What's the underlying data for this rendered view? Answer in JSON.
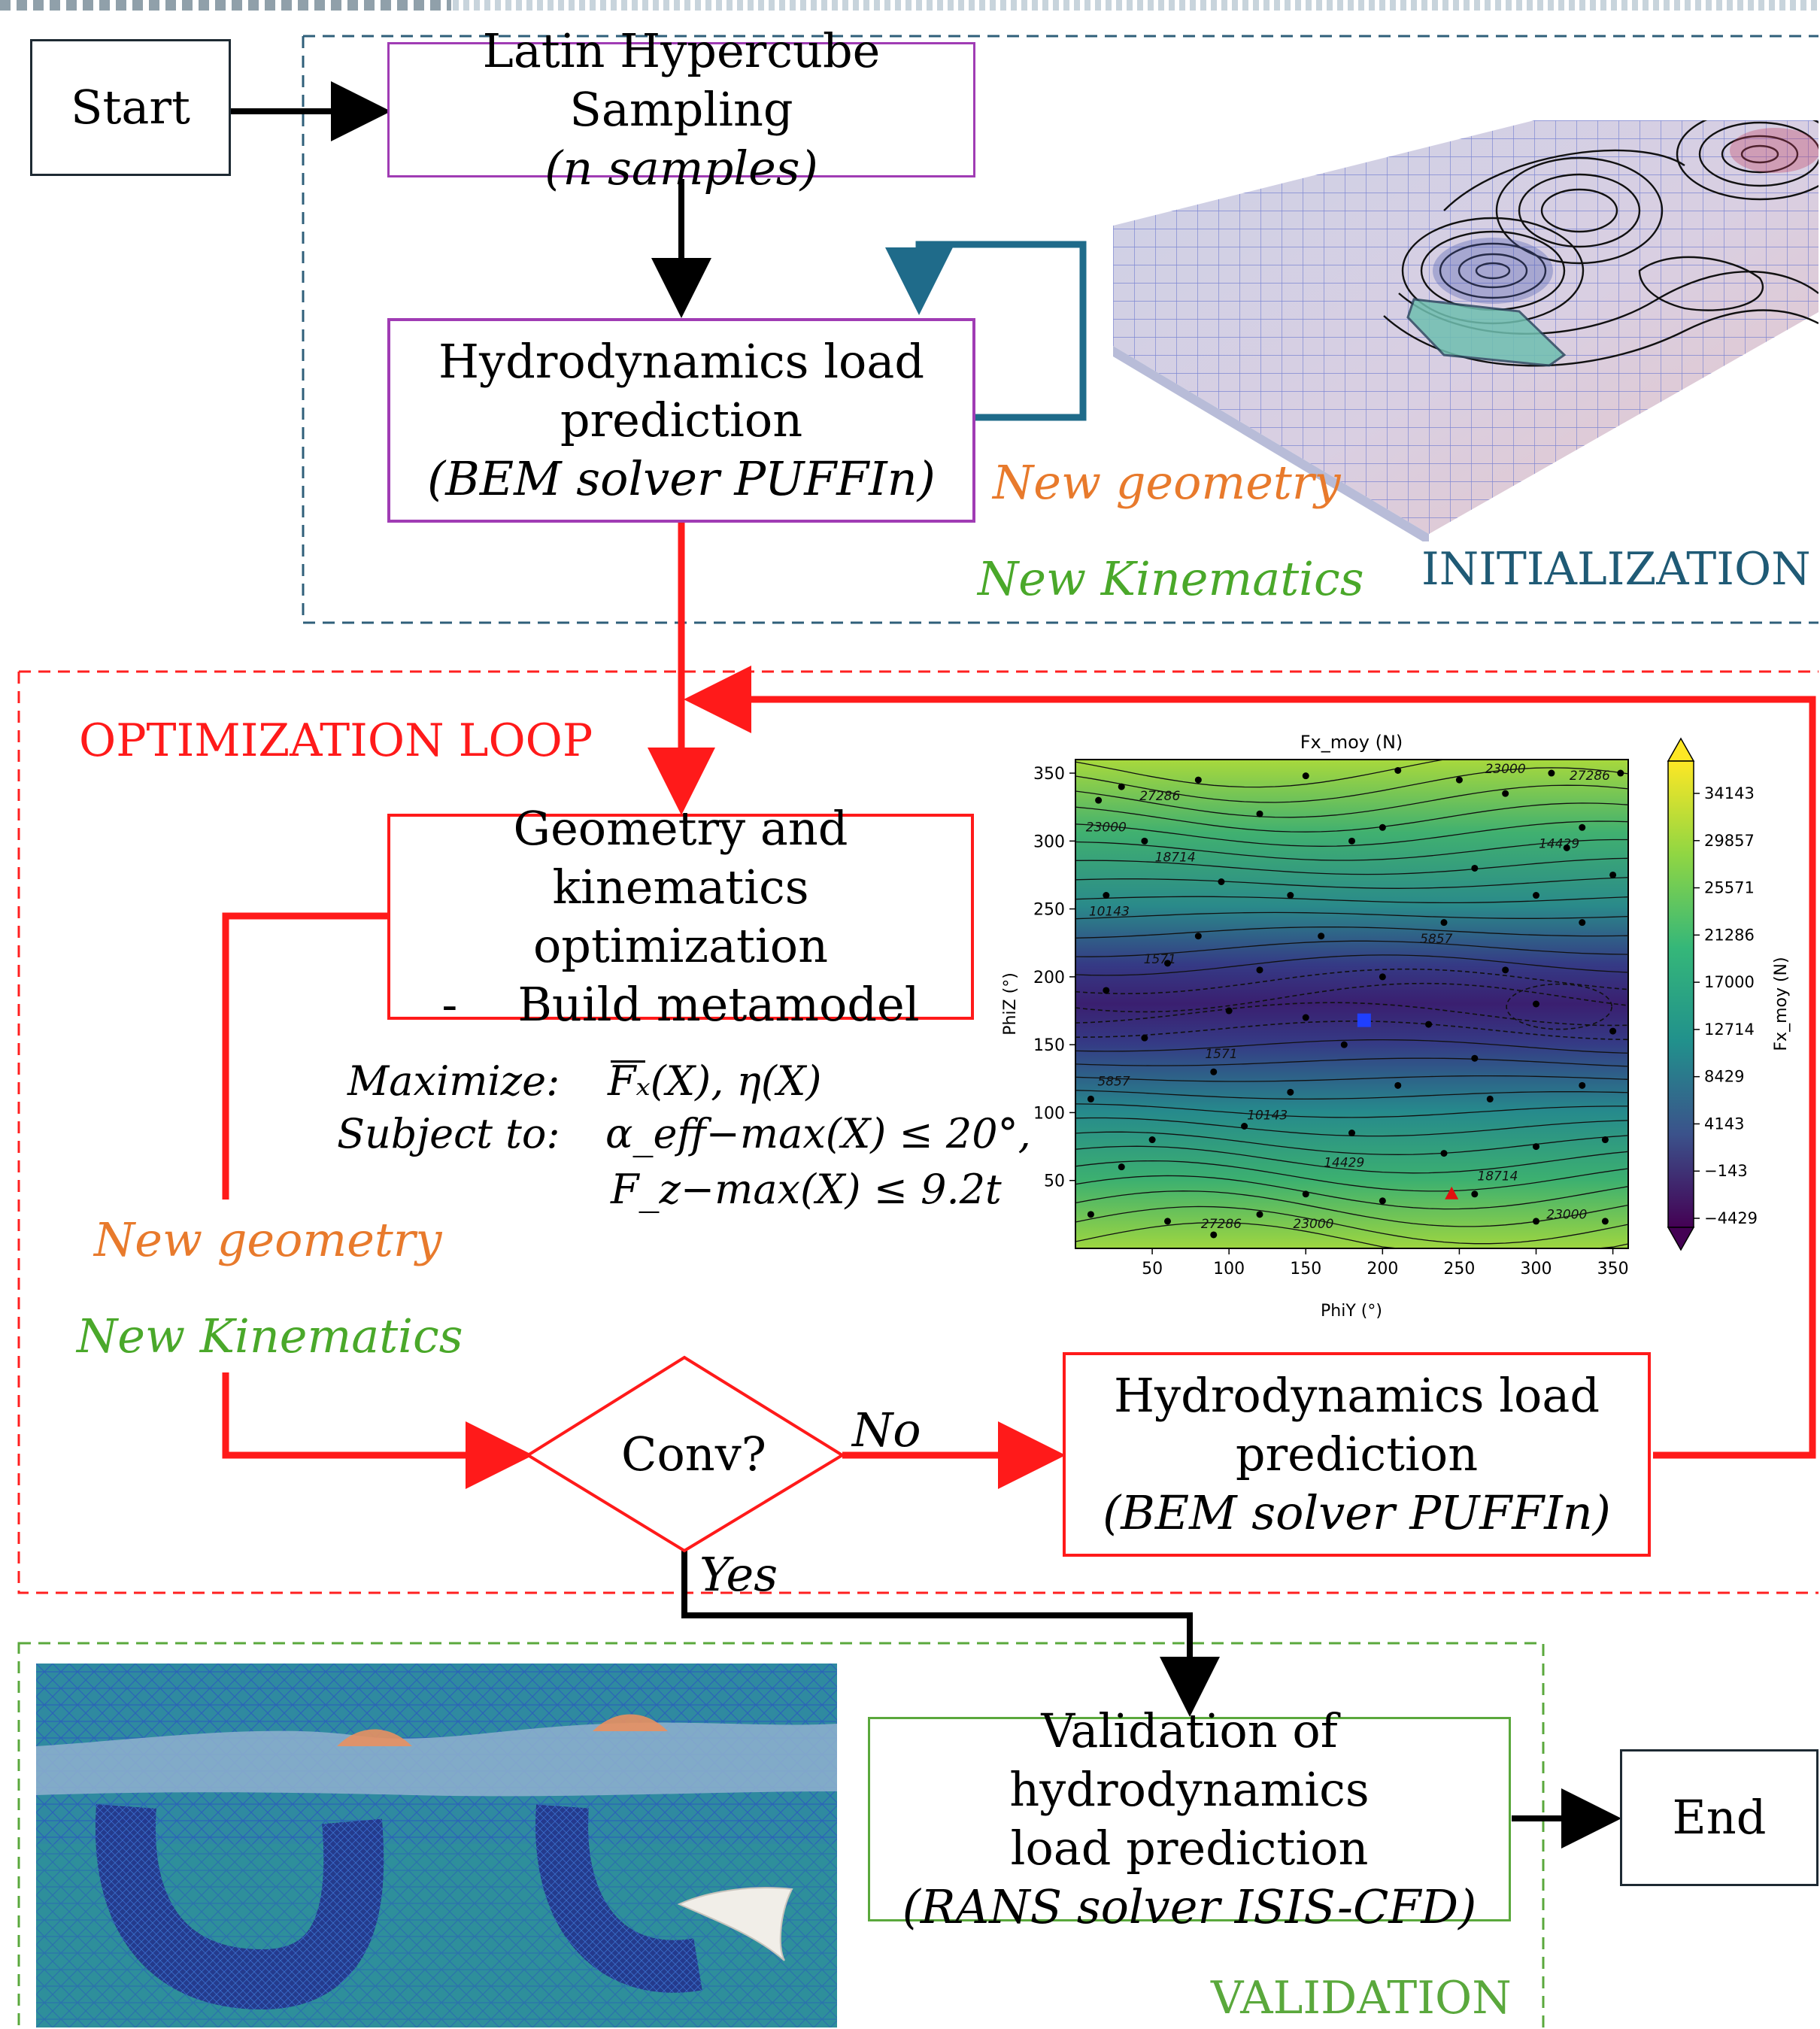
{
  "colors": {
    "init_border": "#2f5f7a",
    "opt_border": "#ff2020",
    "valid_border": "#5aa83c",
    "purple": "#a03cb4",
    "orange": "#e87a2c",
    "green_text": "#4aa82a",
    "red_text": "#ff1a1a",
    "blue_text": "#1f5a75",
    "loop_blue": "#1f6b8a"
  },
  "nodes": {
    "start": "Start",
    "end": "End",
    "lhs_title": "Latin Hypercube Sampling",
    "lhs_sub": "(n samples)",
    "hydro1_line1": "Hydrodynamics load",
    "hydro1_line2": "prediction",
    "hydro1_sub": "(BEM solver PUFFIn)",
    "geo_line1": "Geometry and kinematics",
    "geo_line2": "optimization",
    "geo_bullet": "-",
    "geo_line3": "Build metamodel",
    "conv": "Conv?",
    "hydro2_line1": "Hydrodynamics load",
    "hydro2_line2": "prediction",
    "hydro2_sub": "(BEM solver PUFFIn)",
    "valid_line1": "Validation of hydrodynamics",
    "valid_line2": "load prediction",
    "valid_sub": "(RANS solver ISIS-CFD)"
  },
  "labels": {
    "new_geometry": "New geometry",
    "new_kinematics": "New Kinematics",
    "initialization": "INITIALIZATION",
    "optimization_loop": "OPTIMIZATION LOOP",
    "validation": "VALIDATION",
    "no": "No",
    "yes": "Yes"
  },
  "math": {
    "maximize_label": "Maximize:",
    "subject_label": "Subject to:",
    "objective": "Fₓ(X), η(X)",
    "constraint1": "α_eff−max(X) ≤ 20°,",
    "constraint2": "F_z−max(X) ≤ 9.2t"
  },
  "chart_data": {
    "type": "contour",
    "title": "Fx_moy (N)",
    "xlabel": "PhiY (°)",
    "ylabel": "PhiZ (°)",
    "colorbar_label": "Fx_moy (N)",
    "xlim": [
      0,
      360
    ],
    "ylim": [
      0,
      360
    ],
    "xticks": [
      50,
      100,
      150,
      200,
      250,
      300,
      350
    ],
    "yticks": [
      50,
      100,
      150,
      200,
      250,
      300,
      350
    ],
    "colorbar_ticks": [
      34143,
      29857,
      25571,
      21286,
      17000,
      12714,
      8429,
      4143,
      -143,
      -4429
    ],
    "contour_labels": [
      {
        "text": "27286",
        "x": 55,
        "y": 330
      },
      {
        "text": "23000",
        "x": 20,
        "y": 307
      },
      {
        "text": "18714",
        "x": 65,
        "y": 285
      },
      {
        "text": "10143",
        "x": 22,
        "y": 245
      },
      {
        "text": "1571",
        "x": 55,
        "y": 210
      },
      {
        "text": "5857",
        "x": 235,
        "y": 225
      },
      {
        "text": "23000",
        "x": 280,
        "y": 350
      },
      {
        "text": "27286",
        "x": 335,
        "y": 345
      },
      {
        "text": "14429",
        "x": 315,
        "y": 295
      },
      {
        "text": "1571",
        "x": 95,
        "y": 140
      },
      {
        "text": "5857",
        "x": 25,
        "y": 120
      },
      {
        "text": "10143",
        "x": 125,
        "y": 95
      },
      {
        "text": "14429",
        "x": 175,
        "y": 60
      },
      {
        "text": "18714",
        "x": 275,
        "y": 50
      },
      {
        "text": "27286",
        "x": 95,
        "y": 15
      },
      {
        "text": "23000",
        "x": 155,
        "y": 15
      },
      {
        "text": "23000",
        "x": 320,
        "y": 22
      }
    ],
    "samples": [
      [
        30,
        340
      ],
      [
        80,
        345
      ],
      [
        150,
        348
      ],
      [
        210,
        352
      ],
      [
        250,
        345
      ],
      [
        310,
        350
      ],
      [
        355,
        350
      ],
      [
        15,
        330
      ],
      [
        120,
        320
      ],
      [
        200,
        310
      ],
      [
        280,
        335
      ],
      [
        330,
        310
      ],
      [
        45,
        300
      ],
      [
        180,
        300
      ],
      [
        320,
        295
      ],
      [
        260,
        280
      ],
      [
        95,
        270
      ],
      [
        140,
        260
      ],
      [
        20,
        260
      ],
      [
        350,
        275
      ],
      [
        300,
        260
      ],
      [
        240,
        240
      ],
      [
        160,
        230
      ],
      [
        80,
        230
      ],
      [
        330,
        240
      ],
      [
        60,
        210
      ],
      [
        120,
        205
      ],
      [
        200,
        200
      ],
      [
        280,
        205
      ],
      [
        20,
        190
      ],
      [
        100,
        175
      ],
      [
        150,
        170
      ],
      [
        230,
        165
      ],
      [
        300,
        180
      ],
      [
        350,
        160
      ],
      [
        45,
        155
      ],
      [
        175,
        150
      ],
      [
        260,
        140
      ],
      [
        330,
        120
      ],
      [
        90,
        130
      ],
      [
        10,
        110
      ],
      [
        140,
        115
      ],
      [
        210,
        120
      ],
      [
        270,
        110
      ],
      [
        50,
        80
      ],
      [
        110,
        90
      ],
      [
        180,
        85
      ],
      [
        240,
        70
      ],
      [
        300,
        75
      ],
      [
        345,
        80
      ],
      [
        30,
        60
      ],
      [
        150,
        40
      ],
      [
        200,
        35
      ],
      [
        260,
        40
      ],
      [
        300,
        20
      ],
      [
        60,
        20
      ],
      [
        120,
        25
      ],
      [
        345,
        20
      ],
      [
        10,
        25
      ],
      [
        90,
        10
      ]
    ],
    "optimum_blue": [
      188,
      168
    ],
    "marker_red": [
      245,
      40
    ]
  }
}
